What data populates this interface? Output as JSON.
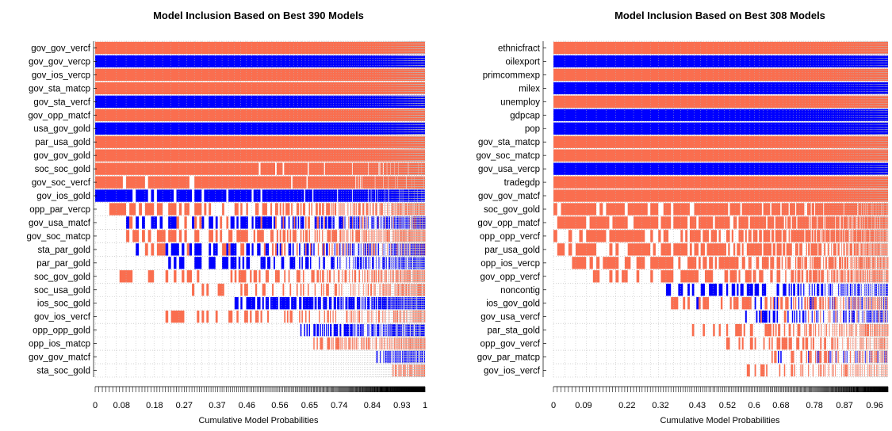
{
  "colors": {
    "positive": "#fa6e4f",
    "negative": "#0000ff",
    "background": "#ffffff",
    "grid": "#b8b8b8",
    "axis": "#000000"
  },
  "chart_data": [
    {
      "type": "heatmap",
      "title": "Model Inclusion Based on Best  390  Models",
      "xlabel": "Cumulative Model Probabilities",
      "ylabel": "",
      "n_models": 390,
      "xlim": [
        0,
        1
      ],
      "xtick_labels": [
        "0",
        "0.08",
        "0.18",
        "0.27",
        "0.37",
        "0.46",
        "0.56",
        "0.65",
        "0.74",
        "0.84",
        "0.93",
        "1"
      ],
      "xtick_values": [
        0,
        0.08,
        0.18,
        0.27,
        0.37,
        0.46,
        0.56,
        0.65,
        0.74,
        0.84,
        0.93,
        1
      ],
      "variables": [
        "gov_gov_vercf",
        "gov_gov_vercp",
        "gov_ios_vercp",
        "gov_sta_matcp",
        "gov_sta_vercf",
        "gov_opp_matcf",
        "usa_gov_gold",
        "par_usa_gold",
        "gov_gov_gold",
        "soc_soc_gold",
        "gov_soc_vercf",
        "gov_ios_gold",
        "opp_par_vercp",
        "gov_usa_matcf",
        "gov_soc_matcp",
        "sta_par_gold",
        "par_par_gold",
        "soc_gov_gold",
        "soc_usa_gold",
        "ios_soc_gold",
        "gov_ios_vercf",
        "opp_opp_gold",
        "opp_ios_matcp",
        "gov_gov_matcf",
        "sta_soc_gold"
      ],
      "inclusion_start": [
        0,
        0,
        0,
        0,
        0,
        0,
        0,
        0,
        0,
        0,
        0,
        0,
        0.04,
        0.08,
        0.08,
        0.12,
        0.18,
        0.06,
        0.28,
        0.42,
        0.2,
        0.62,
        0.66,
        0.85,
        0.9
      ],
      "density_pct": [
        100,
        100,
        100,
        100,
        100,
        100,
        100,
        100,
        100,
        96,
        94,
        92,
        50,
        62,
        48,
        55,
        42,
        38,
        35,
        70,
        30,
        55,
        40,
        50,
        35
      ],
      "sign": [
        1,
        -1,
        1,
        1,
        -1,
        1,
        -1,
        1,
        1,
        1,
        1,
        -1,
        1,
        -1,
        1,
        -1,
        -1,
        1,
        1,
        -1,
        1,
        -1,
        1,
        -1,
        1
      ],
      "mixed_sign": [
        false,
        false,
        false,
        false,
        false,
        false,
        false,
        false,
        false,
        false,
        false,
        false,
        false,
        true,
        false,
        true,
        false,
        false,
        false,
        false,
        false,
        false,
        false,
        false,
        false
      ]
    },
    {
      "type": "heatmap",
      "title": "Model Inclusion Based on Best  308  Models",
      "xlabel": "Cumulative Model Probabilities",
      "ylabel": "",
      "n_models": 308,
      "xlim": [
        0,
        1
      ],
      "xtick_labels": [
        "0",
        "0.09",
        "0.22",
        "0.32",
        "0.43",
        "0.52",
        "0.6",
        "0.68",
        "0.78",
        "0.87",
        "0.96"
      ],
      "xtick_values": [
        0,
        0.09,
        0.22,
        0.32,
        0.43,
        0.52,
        0.6,
        0.68,
        0.78,
        0.87,
        0.96
      ],
      "variables": [
        "ethnicfract",
        "oilexport",
        "primcommexp",
        "milex",
        "unemploy",
        "gdpcap",
        "pop",
        "gov_sta_matcp",
        "gov_soc_matcp",
        "gov_usa_vercp",
        "tradegdp",
        "gov_gov_matcf",
        "soc_gov_gold",
        "gov_opp_matcf",
        "opp_opp_vercf",
        "par_usa_gold",
        "opp_ios_vercp",
        "gov_opp_vercf",
        "noncontig",
        "ios_gov_gold",
        "gov_usa_vercf",
        "par_sta_gold",
        "opp_gov_vercf",
        "gov_par_matcp",
        "gov_ios_vercf"
      ],
      "inclusion_start": [
        0,
        0,
        0,
        0,
        0,
        0,
        0,
        0,
        0,
        0,
        0,
        0,
        0,
        0,
        0,
        0,
        0.05,
        0.09,
        0.33,
        0.35,
        0.55,
        0.4,
        0.5,
        0.65,
        0.53
      ],
      "density_pct": [
        100,
        100,
        100,
        100,
        100,
        100,
        100,
        100,
        100,
        100,
        100,
        100,
        88,
        80,
        72,
        66,
        60,
        58,
        45,
        50,
        40,
        42,
        35,
        45,
        25
      ],
      "sign": [
        1,
        -1,
        1,
        -1,
        1,
        -1,
        -1,
        1,
        1,
        -1,
        1,
        1,
        1,
        1,
        1,
        1,
        1,
        1,
        -1,
        1,
        -1,
        1,
        1,
        1,
        1
      ],
      "mixed_sign": [
        false,
        false,
        false,
        false,
        false,
        false,
        false,
        false,
        false,
        false,
        false,
        false,
        false,
        false,
        false,
        false,
        false,
        false,
        false,
        true,
        true,
        false,
        false,
        true,
        false
      ]
    }
  ]
}
